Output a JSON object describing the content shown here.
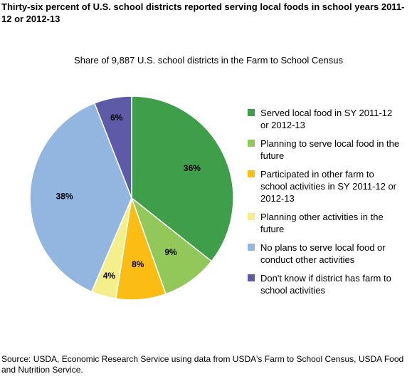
{
  "chart_data": {
    "type": "pie",
    "title": "Thirty-six percent of U.S. school districts reported serving local foods in school years 2011-12 or 2012-13",
    "subtitle": "Share of 9,887 U.S. school districts in the Farm to School Census",
    "categories": [
      "Served local food in SY 2011-12 or 2012-13",
      "Planning to serve local food in the future",
      "Participated in other farm to school activities in SY 2011-12 or 2012-13",
      "Planning other activities in the future",
      "No plans to serve local food or conduct other activities",
      "Don't know if district has farm to school activities"
    ],
    "values": [
      36,
      9,
      8,
      4,
      38,
      6
    ],
    "value_labels": [
      "36%",
      "9%",
      "8%",
      "4%",
      "38%",
      "6%"
    ],
    "colors": [
      "#3f9e4a",
      "#92c85a",
      "#fbbc13",
      "#f4ef8a",
      "#92b6e0",
      "#5d5aa8"
    ],
    "source": "Source: USDA, Economic Research Service using data from USDA's Farm to School Census, USDA Food and Nutrition Service."
  }
}
